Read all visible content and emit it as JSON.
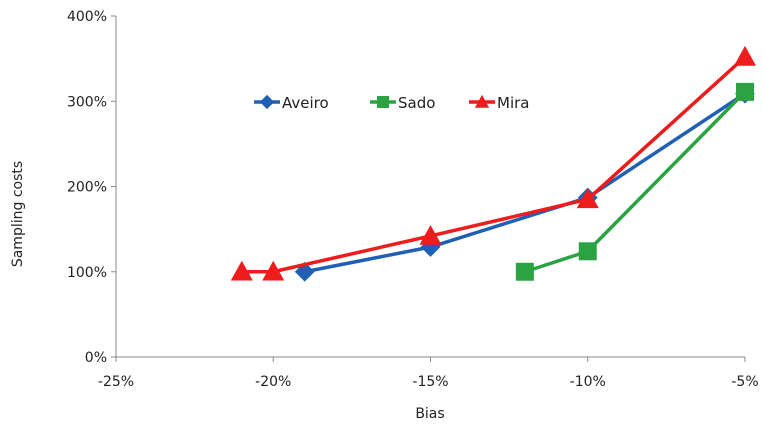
{
  "chart_data": {
    "type": "line",
    "title": "",
    "xlabel": "Bias",
    "ylabel": "Sampling costs",
    "xlim": [
      -25,
      -5
    ],
    "ylim": [
      0,
      400
    ],
    "x_ticks": [
      -25,
      -20,
      -15,
      -10,
      -5
    ],
    "x_tick_labels": [
      "-25%",
      "-20%",
      "-15%",
      "-10%",
      "-5%"
    ],
    "y_ticks": [
      0,
      100,
      200,
      300,
      400
    ],
    "y_tick_labels": [
      "0%",
      "100%",
      "200%",
      "300%",
      "400%"
    ],
    "grid": false,
    "legend_position": "top-center",
    "series": [
      {
        "name": "Aveiro",
        "color": "#1f5fb4",
        "marker": "diamond",
        "points": [
          [
            -19,
            100
          ],
          [
            -15,
            129
          ],
          [
            -10,
            187
          ],
          [
            -5,
            309
          ]
        ]
      },
      {
        "name": "Sado",
        "color": "#2ca342",
        "marker": "square",
        "points": [
          [
            -12,
            100
          ],
          [
            -10,
            124
          ],
          [
            -5,
            311
          ]
        ]
      },
      {
        "name": "Mira",
        "color": "#ee1c1c",
        "marker": "triangle",
        "points": [
          [
            -21,
            100
          ],
          [
            -20,
            100
          ],
          [
            -15,
            142
          ],
          [
            -10,
            185
          ],
          [
            -5,
            352
          ]
        ]
      }
    ]
  }
}
